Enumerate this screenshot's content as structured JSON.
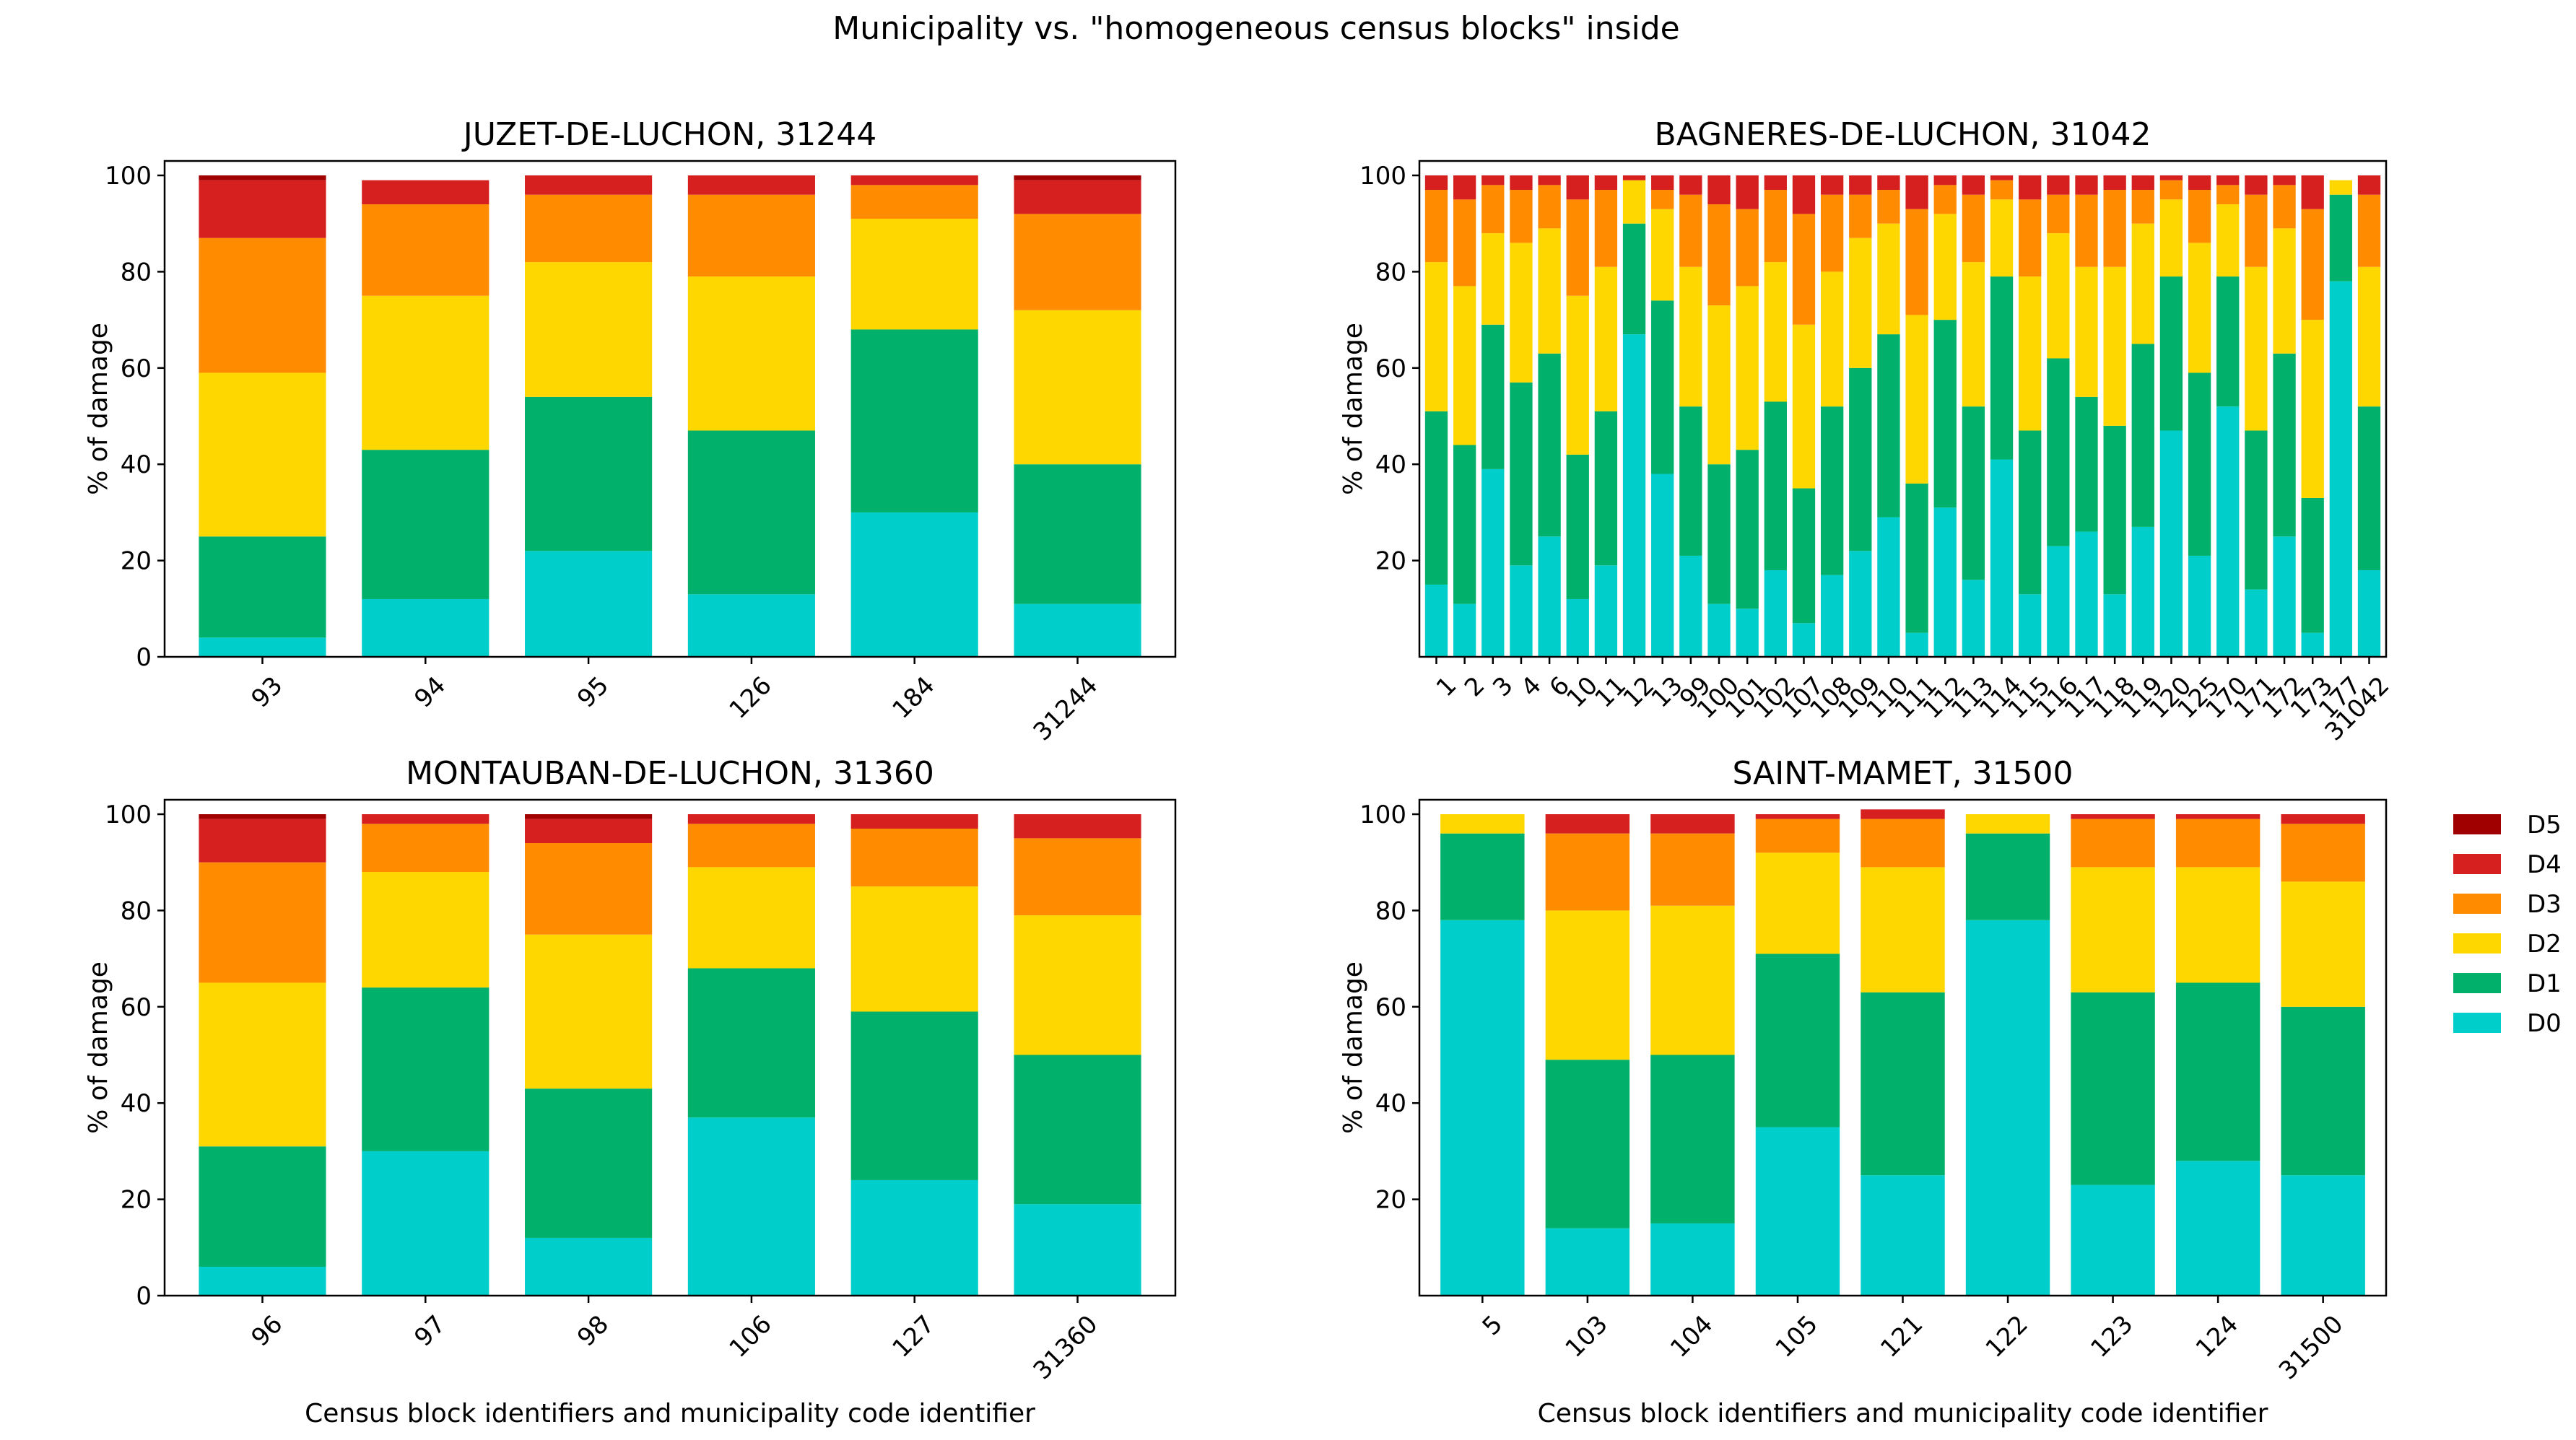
{
  "figure_title": "Municipality vs. \"homogeneous census blocks\" inside",
  "colors": {
    "D0": "#00cecb",
    "D1": "#00b06b",
    "D2": "#ffd700",
    "D3": "#ff8c00",
    "D4": "#d62020",
    "D5": "#a00000"
  },
  "legend": [
    "D5",
    "D4",
    "D3",
    "D2",
    "D1",
    "D0"
  ],
  "chart_data": [
    {
      "type": "bar",
      "stacked": true,
      "title": "JUZET-DE-LUCHON, 31244",
      "ylabel": "% of damage",
      "xlabel": "",
      "ylim": [
        0,
        103
      ],
      "yticks": [
        0,
        20,
        40,
        60,
        80,
        100
      ],
      "categories": [
        "93",
        "94",
        "95",
        "126",
        "184",
        "31244"
      ],
      "series": [
        {
          "name": "D0",
          "values": [
            4,
            12,
            22,
            13,
            30,
            11
          ]
        },
        {
          "name": "D1",
          "values": [
            21,
            31,
            32,
            34,
            38,
            29
          ]
        },
        {
          "name": "D2",
          "values": [
            34,
            32,
            28,
            32,
            23,
            32
          ]
        },
        {
          "name": "D3",
          "values": [
            28,
            19,
            14,
            17,
            7,
            20
          ]
        },
        {
          "name": "D4",
          "values": [
            12,
            5,
            4,
            4,
            2,
            7
          ]
        },
        {
          "name": "D5",
          "values": [
            1,
            0,
            0,
            0,
            0,
            1
          ]
        }
      ]
    },
    {
      "type": "bar",
      "stacked": true,
      "title": "BAGNERES-DE-LUCHON, 31042",
      "ylabel": "% of damage",
      "xlabel": "",
      "ylim": [
        0,
        103
      ],
      "yticks": [
        20,
        40,
        60,
        80,
        100
      ],
      "categories": [
        "1",
        "2",
        "3",
        "4",
        "6",
        "10",
        "11",
        "12",
        "13",
        "99",
        "100",
        "101",
        "102",
        "107",
        "108",
        "109",
        "110",
        "111",
        "112",
        "113",
        "114",
        "115",
        "116",
        "117",
        "118",
        "119",
        "120",
        "125",
        "170",
        "171",
        "172",
        "173",
        "177",
        "31042"
      ],
      "series": [
        {
          "name": "D0",
          "values": [
            15,
            11,
            39,
            19,
            25,
            12,
            19,
            67,
            38,
            21,
            11,
            10,
            18,
            7,
            17,
            22,
            29,
            5,
            31,
            16,
            41,
            13,
            23,
            26,
            13,
            27,
            47,
            21,
            52,
            14,
            25,
            5,
            78,
            18
          ]
        },
        {
          "name": "D1",
          "values": [
            36,
            33,
            30,
            38,
            38,
            30,
            32,
            23,
            36,
            31,
            29,
            33,
            35,
            28,
            35,
            38,
            38,
            31,
            39,
            36,
            38,
            34,
            39,
            28,
            35,
            38,
            32,
            38,
            27,
            33,
            38,
            28,
            18,
            34
          ]
        },
        {
          "name": "D2",
          "values": [
            31,
            33,
            19,
            29,
            26,
            33,
            30,
            9,
            19,
            29,
            33,
            34,
            29,
            34,
            28,
            27,
            23,
            35,
            22,
            30,
            16,
            32,
            26,
            27,
            33,
            25,
            16,
            27,
            15,
            34,
            26,
            37,
            3,
            29
          ]
        },
        {
          "name": "D3",
          "values": [
            15,
            18,
            10,
            11,
            9,
            20,
            16,
            0,
            4,
            15,
            21,
            16,
            15,
            23,
            16,
            9,
            7,
            22,
            6,
            14,
            4,
            16,
            8,
            15,
            16,
            7,
            4,
            11,
            4,
            15,
            9,
            23,
            0,
            15
          ]
        },
        {
          "name": "D4",
          "values": [
            3,
            5,
            2,
            3,
            2,
            5,
            3,
            1,
            3,
            4,
            6,
            7,
            3,
            8,
            4,
            4,
            3,
            7,
            2,
            4,
            1,
            5,
            4,
            4,
            3,
            3,
            1,
            3,
            2,
            4,
            2,
            7,
            0,
            4
          ]
        },
        {
          "name": "D5",
          "values": [
            0,
            0,
            0,
            0,
            0,
            0,
            0,
            0,
            0,
            0,
            0,
            0,
            0,
            0,
            0,
            0,
            0,
            0,
            0,
            0,
            0,
            0,
            0,
            0,
            0,
            0,
            0,
            0,
            0,
            0,
            0,
            0,
            0,
            0
          ]
        }
      ]
    },
    {
      "type": "bar",
      "stacked": true,
      "title": "MONTAUBAN-DE-LUCHON, 31360",
      "ylabel": "% of damage",
      "xlabel": "Census block identifiers and municipality code identifier",
      "ylim": [
        0,
        103
      ],
      "yticks": [
        0,
        20,
        40,
        60,
        80,
        100
      ],
      "categories": [
        "96",
        "97",
        "98",
        "106",
        "127",
        "31360"
      ],
      "series": [
        {
          "name": "D0",
          "values": [
            6,
            30,
            12,
            37,
            24,
            19
          ]
        },
        {
          "name": "D1",
          "values": [
            25,
            34,
            31,
            31,
            35,
            31
          ]
        },
        {
          "name": "D2",
          "values": [
            34,
            24,
            32,
            21,
            26,
            29
          ]
        },
        {
          "name": "D3",
          "values": [
            25,
            10,
            19,
            9,
            12,
            16
          ]
        },
        {
          "name": "D4",
          "values": [
            9,
            2,
            5,
            2,
            3,
            5
          ]
        },
        {
          "name": "D5",
          "values": [
            1,
            0,
            1,
            0,
            0,
            0
          ]
        }
      ]
    },
    {
      "type": "bar",
      "stacked": true,
      "title": "SAINT-MAMET, 31500",
      "ylabel": "% of damage",
      "xlabel": "Census block identifiers and municipality code identifier",
      "ylim": [
        0,
        103
      ],
      "yticks": [
        20,
        40,
        60,
        80,
        100
      ],
      "categories": [
        "5",
        "103",
        "104",
        "105",
        "121",
        "122",
        "123",
        "124",
        "31500"
      ],
      "series": [
        {
          "name": "D0",
          "values": [
            78,
            14,
            15,
            35,
            25,
            78,
            23,
            28,
            25
          ]
        },
        {
          "name": "D1",
          "values": [
            18,
            35,
            35,
            36,
            38,
            18,
            40,
            37,
            35
          ]
        },
        {
          "name": "D2",
          "values": [
            4,
            31,
            31,
            21,
            26,
            4,
            26,
            24,
            26
          ]
        },
        {
          "name": "D3",
          "values": [
            0,
            16,
            15,
            7,
            10,
            0,
            10,
            10,
            12
          ]
        },
        {
          "name": "D4",
          "values": [
            0,
            4,
            4,
            1,
            2,
            0,
            1,
            1,
            2
          ]
        },
        {
          "name": "D5",
          "values": [
            0,
            0,
            0,
            0,
            0,
            0,
            0,
            0,
            0
          ]
        }
      ]
    }
  ]
}
